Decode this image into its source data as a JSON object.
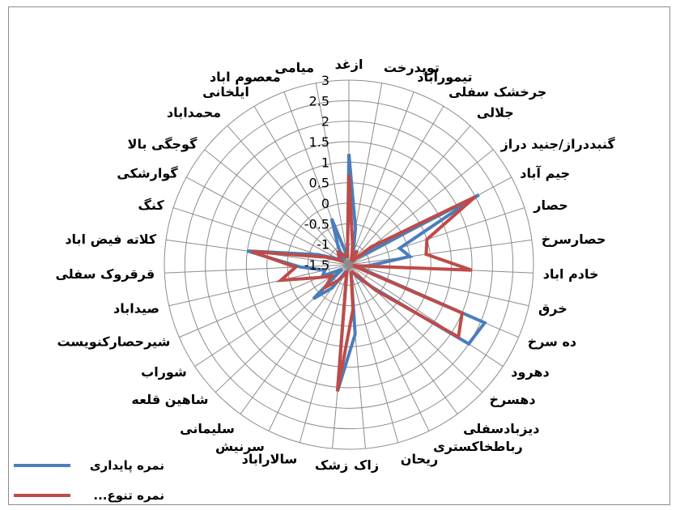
{
  "chart_data": {
    "type": "radar",
    "title": "",
    "categories": [
      "ازغد",
      "توپدرخت",
      "تیمورآباد",
      "جرخشک سفلی",
      "جلالی",
      "گنبددراز/جنید دراز",
      "جیم آباد",
      "حصار",
      "حصارسرخ",
      "خادم اباد",
      "خرق",
      "ده سرخ",
      "دهرود",
      "دهسرخ",
      "دیزبادسفلی",
      "رباطخاکستری",
      "ریحان",
      "زاک",
      "زشک",
      "سالاراباد",
      "سرنیش",
      "سلیمانی",
      "شاهین قلعه",
      "شوراب",
      "شیرحصارکنویست",
      "صیداباد",
      "قرقروک سفلی",
      "کلاته فیض اباد",
      "کنگ",
      "گوارشکی",
      "گوجگی بالا",
      "محمداباد",
      "ایلخانی",
      "معصوم اباد",
      "میامی"
    ],
    "ticks": [
      "-1.5",
      "-1",
      "-0.5",
      "0",
      "0.5",
      "1",
      "1.5",
      "2",
      "2.5",
      "3"
    ],
    "rmin": -1.5,
    "rmax": 3,
    "series": [
      {
        "name": "نمره پایداری",
        "color": "#4a7ebb",
        "values": [
          1.2,
          -0.6,
          -1.2,
          -1.2,
          -1.3,
          -1.2,
          2.1,
          -0.2,
          0.0,
          -1.0,
          -1.3,
          2.1,
          2.0,
          -0.7,
          -1.1,
          -1.3,
          -1.3,
          0.2,
          1.6,
          -1.3,
          -1.3,
          -0.8,
          -0.3,
          -1.3,
          -0.8,
          -0.9,
          -0.3,
          1.0,
          -0.7,
          -1.2,
          -1.2,
          -1.3,
          -1.0,
          -0.3,
          -1.3
        ]
      },
      {
        "name": "...نمره تنوع",
        "color": "#be4b48",
        "values": [
          0.7,
          -1.0,
          -1.3,
          -1.1,
          -1.4,
          -0.8,
          2.0,
          0.5,
          0.4,
          1.5,
          -1.4,
          1.5,
          1.7,
          -0.6,
          -1.2,
          -1.3,
          -1.3,
          -0.4,
          1.6,
          -1.3,
          -1.2,
          -1.0,
          -0.7,
          -1.0,
          -0.7,
          0.2,
          -0.2,
          0.9,
          -0.9,
          -1.3,
          -1.2,
          -1.1,
          -1.2,
          -1.3,
          -1.3
        ]
      }
    ],
    "legend_position": "bottom-left",
    "grid": true
  }
}
